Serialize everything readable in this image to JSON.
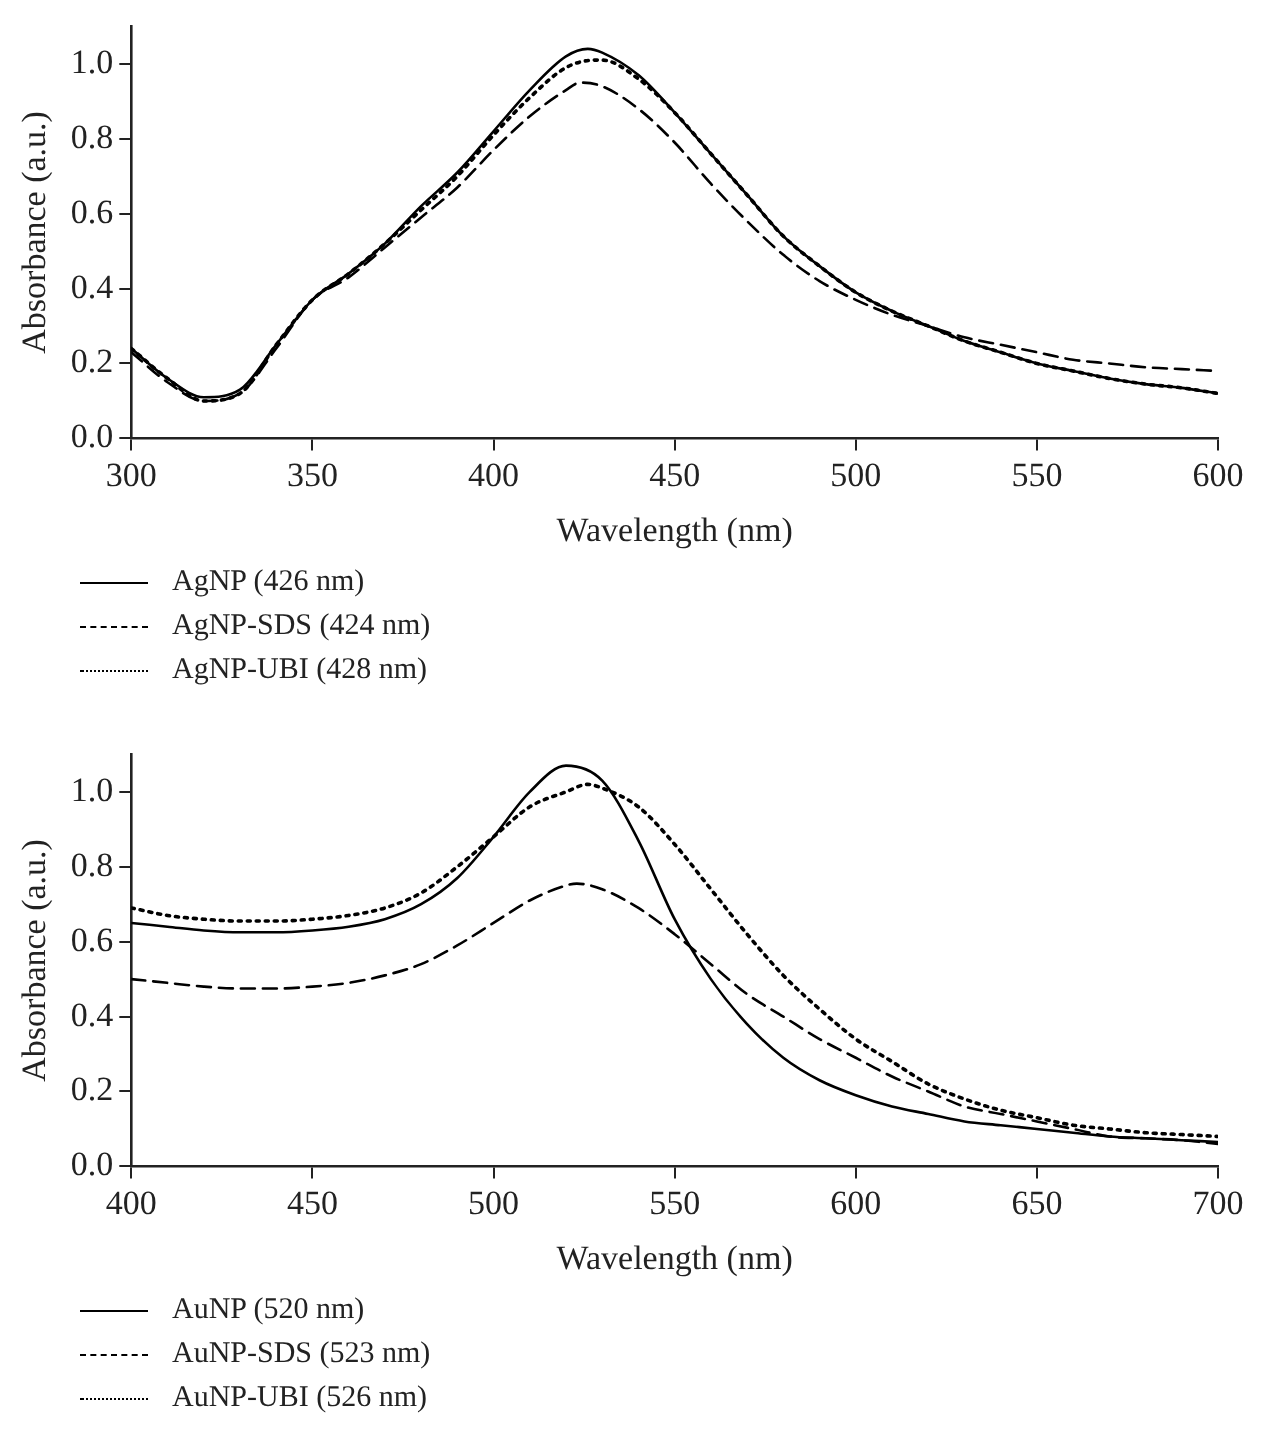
{
  "chart_data": [
    {
      "type": "line",
      "xlabel": "Wavelength (nm)",
      "ylabel": "Absorbance (a.u.)",
      "xlim": [
        300,
        600
      ],
      "xticks": [
        300,
        350,
        400,
        450,
        500,
        550,
        600
      ],
      "ylim": [
        0,
        1.1
      ],
      "yticks": [
        {
          "value": 0,
          "label": "0.0"
        },
        {
          "value": 0.2,
          "label": "0.2"
        },
        {
          "value": 0.4,
          "label": "0.4"
        },
        {
          "value": 0.6,
          "label": "0.6"
        },
        {
          "value": 0.8,
          "label": "0.8"
        },
        {
          "value": 1,
          "label": "1.0"
        }
      ],
      "legend": "bottom",
      "grid": false,
      "marker": "none",
      "series": [
        {
          "name": "AgNP (426 nm)",
          "color": "#000000",
          "line_style": "solid",
          "x": [
            300,
            310,
            320,
            330,
            340,
            350,
            360,
            370,
            380,
            390,
            400,
            410,
            420,
            426,
            430,
            440,
            450,
            460,
            470,
            480,
            490,
            500,
            510,
            520,
            530,
            540,
            550,
            560,
            570,
            580,
            590,
            600
          ],
          "values": [
            0.24,
            0.16,
            0.11,
            0.13,
            0.25,
            0.37,
            0.44,
            0.52,
            0.62,
            0.71,
            0.82,
            0.93,
            1.02,
            1.04,
            1.03,
            0.97,
            0.87,
            0.76,
            0.65,
            0.54,
            0.46,
            0.39,
            0.34,
            0.3,
            0.26,
            0.23,
            0.2,
            0.18,
            0.16,
            0.145,
            0.135,
            0.12
          ]
        },
        {
          "name": "AgNP-SDS (424 nm)",
          "color": "#000000",
          "line_style": "dashed",
          "x": [
            300,
            310,
            320,
            330,
            340,
            350,
            360,
            370,
            380,
            390,
            400,
            410,
            420,
            424,
            430,
            440,
            450,
            460,
            470,
            480,
            490,
            500,
            510,
            520,
            530,
            540,
            550,
            560,
            570,
            580,
            590,
            600
          ],
          "values": [
            0.23,
            0.15,
            0.1,
            0.12,
            0.24,
            0.37,
            0.43,
            0.51,
            0.59,
            0.67,
            0.77,
            0.86,
            0.93,
            0.95,
            0.94,
            0.88,
            0.79,
            0.68,
            0.58,
            0.49,
            0.42,
            0.37,
            0.33,
            0.3,
            0.27,
            0.25,
            0.23,
            0.21,
            0.2,
            0.19,
            0.185,
            0.18
          ]
        },
        {
          "name": "AgNP-UBI (428 nm)",
          "color": "#000000",
          "line_style": "dotted",
          "x": [
            300,
            310,
            320,
            330,
            340,
            350,
            360,
            370,
            380,
            390,
            400,
            410,
            420,
            428,
            430,
            440,
            450,
            460,
            470,
            480,
            490,
            500,
            510,
            520,
            530,
            540,
            550,
            560,
            570,
            580,
            590,
            600
          ],
          "values": [
            0.24,
            0.16,
            0.1,
            0.12,
            0.25,
            0.37,
            0.44,
            0.52,
            0.61,
            0.7,
            0.81,
            0.91,
            0.99,
            1.01,
            1.01,
            0.96,
            0.87,
            0.76,
            0.65,
            0.54,
            0.46,
            0.39,
            0.34,
            0.3,
            0.26,
            0.23,
            0.2,
            0.18,
            0.16,
            0.145,
            0.135,
            0.12
          ]
        }
      ]
    },
    {
      "type": "line",
      "xlabel": "Wavelength (nm)",
      "ylabel": "Absorbance (a.u.)",
      "xlim": [
        400,
        700
      ],
      "xticks": [
        400,
        450,
        500,
        550,
        600,
        650,
        700
      ],
      "ylim": [
        0,
        1.1
      ],
      "yticks": [
        {
          "value": 0,
          "label": "0.0"
        },
        {
          "value": 0.2,
          "label": "0.2"
        },
        {
          "value": 0.4,
          "label": "0.4"
        },
        {
          "value": 0.6,
          "label": "0.6"
        },
        {
          "value": 0.8,
          "label": "0.8"
        },
        {
          "value": 1,
          "label": "1.0"
        }
      ],
      "legend": "bottom",
      "grid": false,
      "marker": "none",
      "series": [
        {
          "name": "AuNP (520 nm)",
          "color": "#000000",
          "line_style": "solid",
          "x": [
            400,
            410,
            420,
            430,
            440,
            450,
            460,
            470,
            480,
            490,
            500,
            510,
            520,
            530,
            540,
            550,
            560,
            570,
            580,
            590,
            600,
            610,
            620,
            630,
            640,
            650,
            660,
            670,
            680,
            690,
            700
          ],
          "values": [
            0.65,
            0.64,
            0.63,
            0.625,
            0.625,
            0.63,
            0.64,
            0.66,
            0.7,
            0.77,
            0.88,
            1.0,
            1.07,
            1.03,
            0.87,
            0.66,
            0.5,
            0.38,
            0.29,
            0.23,
            0.19,
            0.16,
            0.14,
            0.12,
            0.11,
            0.1,
            0.09,
            0.08,
            0.075,
            0.07,
            0.065
          ]
        },
        {
          "name": "AuNP-SDS (523 nm)",
          "color": "#000000",
          "line_style": "dashed",
          "x": [
            400,
            410,
            420,
            430,
            440,
            450,
            460,
            470,
            480,
            490,
            500,
            510,
            520,
            523,
            530,
            540,
            550,
            560,
            570,
            580,
            590,
            600,
            610,
            620,
            630,
            640,
            650,
            660,
            670,
            680,
            690,
            700
          ],
          "values": [
            0.5,
            0.49,
            0.48,
            0.475,
            0.475,
            0.48,
            0.49,
            0.51,
            0.54,
            0.59,
            0.65,
            0.71,
            0.75,
            0.755,
            0.74,
            0.69,
            0.62,
            0.54,
            0.46,
            0.4,
            0.34,
            0.29,
            0.24,
            0.2,
            0.16,
            0.14,
            0.12,
            0.1,
            0.08,
            0.075,
            0.07,
            0.06
          ]
        },
        {
          "name": "AuNP-UBI (526 nm)",
          "color": "#000000",
          "line_style": "dotted",
          "x": [
            400,
            410,
            420,
            430,
            440,
            450,
            460,
            470,
            480,
            490,
            500,
            510,
            520,
            526,
            530,
            540,
            550,
            560,
            570,
            580,
            590,
            600,
            610,
            620,
            630,
            640,
            650,
            660,
            670,
            680,
            690,
            700
          ],
          "values": [
            0.69,
            0.67,
            0.66,
            0.655,
            0.655,
            0.66,
            0.67,
            0.69,
            0.73,
            0.8,
            0.88,
            0.96,
            1.0,
            1.02,
            1.01,
            0.96,
            0.86,
            0.74,
            0.62,
            0.51,
            0.42,
            0.34,
            0.28,
            0.22,
            0.18,
            0.15,
            0.13,
            0.11,
            0.1,
            0.09,
            0.085,
            0.08
          ]
        }
      ]
    }
  ]
}
